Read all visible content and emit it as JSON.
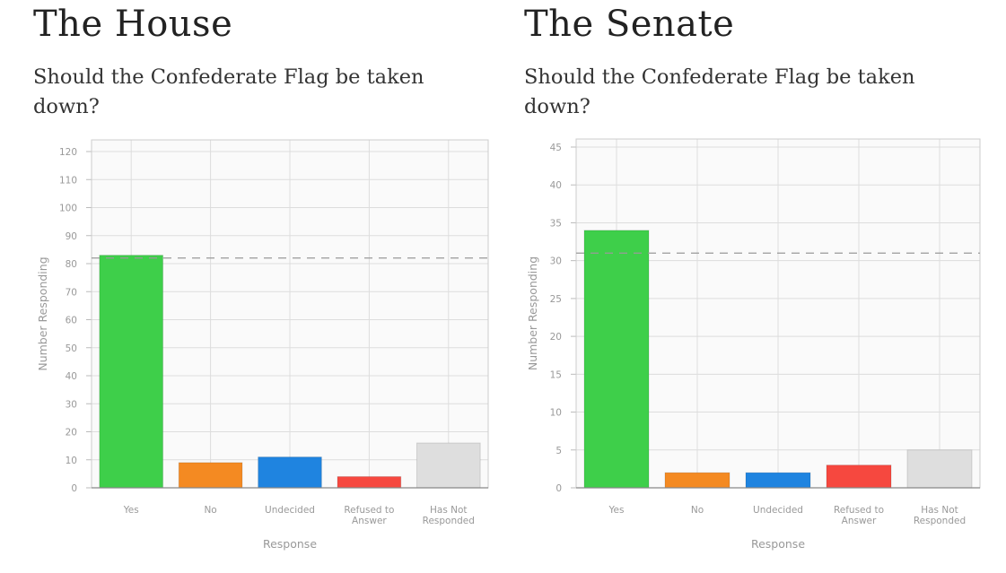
{
  "chart_data": [
    {
      "type": "bar",
      "heading": "The House",
      "title": "Should the Confederate Flag be taken down?",
      "xlabel": "Response",
      "ylabel": "Number Responding",
      "categories": [
        "Yes",
        "No",
        "Undecided",
        "Refused to Answer",
        "Has Not Responded"
      ],
      "category_lines": [
        [
          "Yes"
        ],
        [
          "No"
        ],
        [
          "Undecided"
        ],
        [
          "Refused to",
          "Answer"
        ],
        [
          "Has Not",
          "Responded"
        ]
      ],
      "values": [
        83,
        9,
        11,
        4,
        16
      ],
      "colors": [
        "#3ecf4a",
        "#f48a22",
        "#1f84e0",
        "#f6483f",
        "#dedede"
      ],
      "ylim": [
        0,
        120
      ],
      "yticks": [
        0,
        10,
        20,
        30,
        40,
        50,
        60,
        70,
        80,
        90,
        100,
        110,
        120
      ],
      "reference_line": 82,
      "grid": true,
      "legend": "none"
    },
    {
      "type": "bar",
      "heading": "The Senate",
      "title": "Should the Confederate Flag be taken down?",
      "xlabel": "Response",
      "ylabel": "Number Responding",
      "categories": [
        "Yes",
        "No",
        "Undecided",
        "Refused to Answer",
        "Has Not Responded"
      ],
      "category_lines": [
        [
          "Yes"
        ],
        [
          "No"
        ],
        [
          "Undecided"
        ],
        [
          "Refused to",
          "Answer"
        ],
        [
          "Has Not",
          "Responded"
        ]
      ],
      "values": [
        34,
        2,
        2,
        3,
        5
      ],
      "colors": [
        "#3ecf4a",
        "#f48a22",
        "#1f84e0",
        "#f6483f",
        "#dedede"
      ],
      "ylim": [
        0,
        45
      ],
      "yticks": [
        0,
        5,
        10,
        15,
        20,
        25,
        30,
        35,
        40,
        45
      ],
      "reference_line": 31,
      "grid": true,
      "legend": "none"
    }
  ]
}
